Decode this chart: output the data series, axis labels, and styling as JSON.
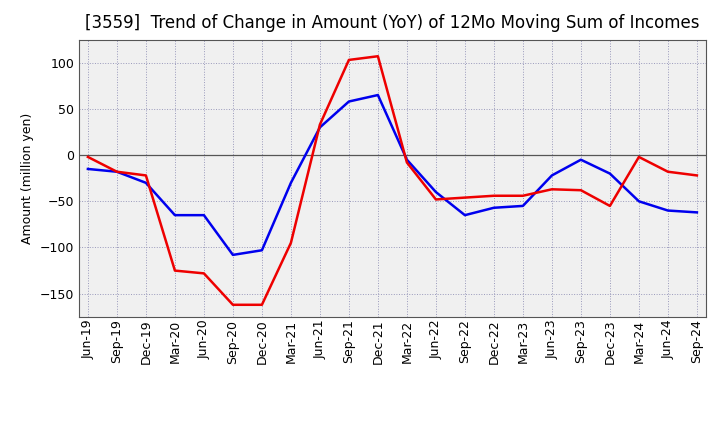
{
  "title": "[3559]  Trend of Change in Amount (YoY) of 12Mo Moving Sum of Incomes",
  "ylabel": "Amount (million yen)",
  "labels": [
    "Jun-19",
    "Sep-19",
    "Dec-19",
    "Mar-20",
    "Jun-20",
    "Sep-20",
    "Dec-20",
    "Mar-21",
    "Jun-21",
    "Sep-21",
    "Dec-21",
    "Mar-22",
    "Jun-22",
    "Sep-22",
    "Dec-22",
    "Mar-23",
    "Jun-23",
    "Sep-23",
    "Dec-23",
    "Mar-24",
    "Jun-24",
    "Sep-24"
  ],
  "ordinary_income": [
    -15,
    -18,
    -30,
    -65,
    -65,
    -108,
    -103,
    -30,
    30,
    58,
    65,
    -5,
    -40,
    -65,
    -57,
    -55,
    -22,
    -5,
    -20,
    -50,
    -60,
    -62
  ],
  "net_income": [
    -2,
    -18,
    -22,
    -125,
    -128,
    -162,
    -162,
    -95,
    33,
    103,
    107,
    -8,
    -48,
    -46,
    -44,
    -44,
    -37,
    -38,
    -55,
    -2,
    -18,
    -22
  ],
  "ordinary_color": "#0000ee",
  "net_color": "#ee0000",
  "ylim": [
    -175,
    125
  ],
  "yticks": [
    -150,
    -100,
    -50,
    0,
    50,
    100
  ],
  "plot_bg_color": "#f0f0f0",
  "fig_bg_color": "#ffffff",
  "grid_color": "#9999bb",
  "zero_line_color": "#555555",
  "title_fontsize": 12,
  "axis_fontsize": 9,
  "legend_fontsize": 10,
  "linewidth": 1.8
}
